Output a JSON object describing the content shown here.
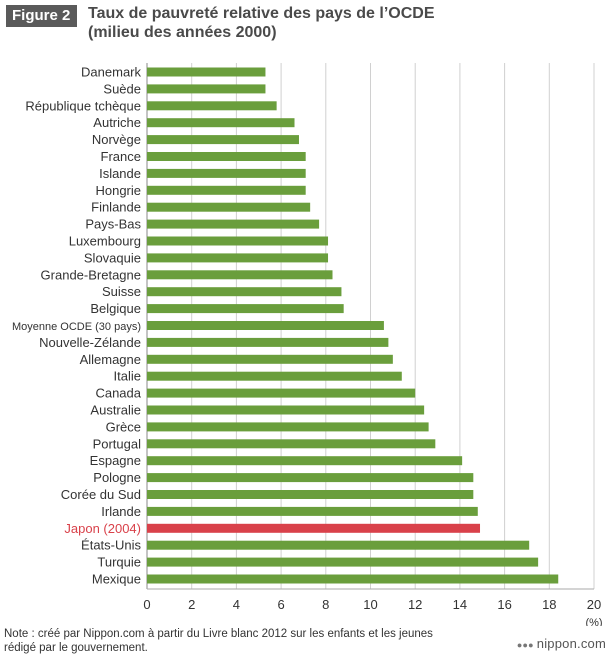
{
  "header": {
    "figure_label": "Figure 2",
    "title_line1": "Taux de pauvreté relative des pays de l’OCDE",
    "title_line2": "(milieu des années 2000)"
  },
  "chart_data": {
    "type": "bar",
    "orientation": "horizontal",
    "categories": [
      "Danemark",
      "Suède",
      "République tchèque",
      "Autriche",
      "Norvège",
      "France",
      "Islande",
      "Hongrie",
      "Finlande",
      "Pays-Bas",
      "Luxembourg",
      "Slovaquie",
      "Grande-Bretagne",
      "Suisse",
      "Belgique",
      "Moyenne OCDE (30 pays)",
      "Nouvelle-Zélande",
      "Allemagne",
      "Italie",
      "Canada",
      "Australie",
      "Grèce",
      "Portugal",
      "Espagne",
      "Pologne",
      "Corée du Sud",
      "Irlande",
      "Japon (2004)",
      "États-Unis",
      "Turquie",
      "Mexique"
    ],
    "values": [
      5.3,
      5.3,
      5.8,
      6.6,
      6.8,
      7.1,
      7.1,
      7.1,
      7.3,
      7.7,
      8.1,
      8.1,
      8.3,
      8.7,
      8.8,
      10.6,
      10.8,
      11.0,
      11.4,
      12.0,
      12.4,
      12.6,
      12.9,
      14.1,
      14.6,
      14.6,
      14.8,
      14.9,
      17.1,
      17.5,
      18.4
    ],
    "highlight_category": "Japon (2004)",
    "colors": {
      "bar": "#6a9e3c",
      "highlight": "#d9414a",
      "highlight_label": "#d9414a"
    },
    "xlim": [
      0,
      20
    ],
    "xticks": [
      0,
      2,
      4,
      6,
      8,
      10,
      12,
      14,
      16,
      18,
      20
    ],
    "unit_label": "(%)",
    "grid": "vertical",
    "xlabel": "",
    "ylabel": ""
  },
  "footer": {
    "note_line1": "Note : créé par Nippon.com à partir du Livre blanc 2012 sur les enfants et les jeunes",
    "note_line2": "rédigé par le gouvernement.",
    "logo_text": "nippon.com",
    "logo_icon": "dots-icon"
  }
}
